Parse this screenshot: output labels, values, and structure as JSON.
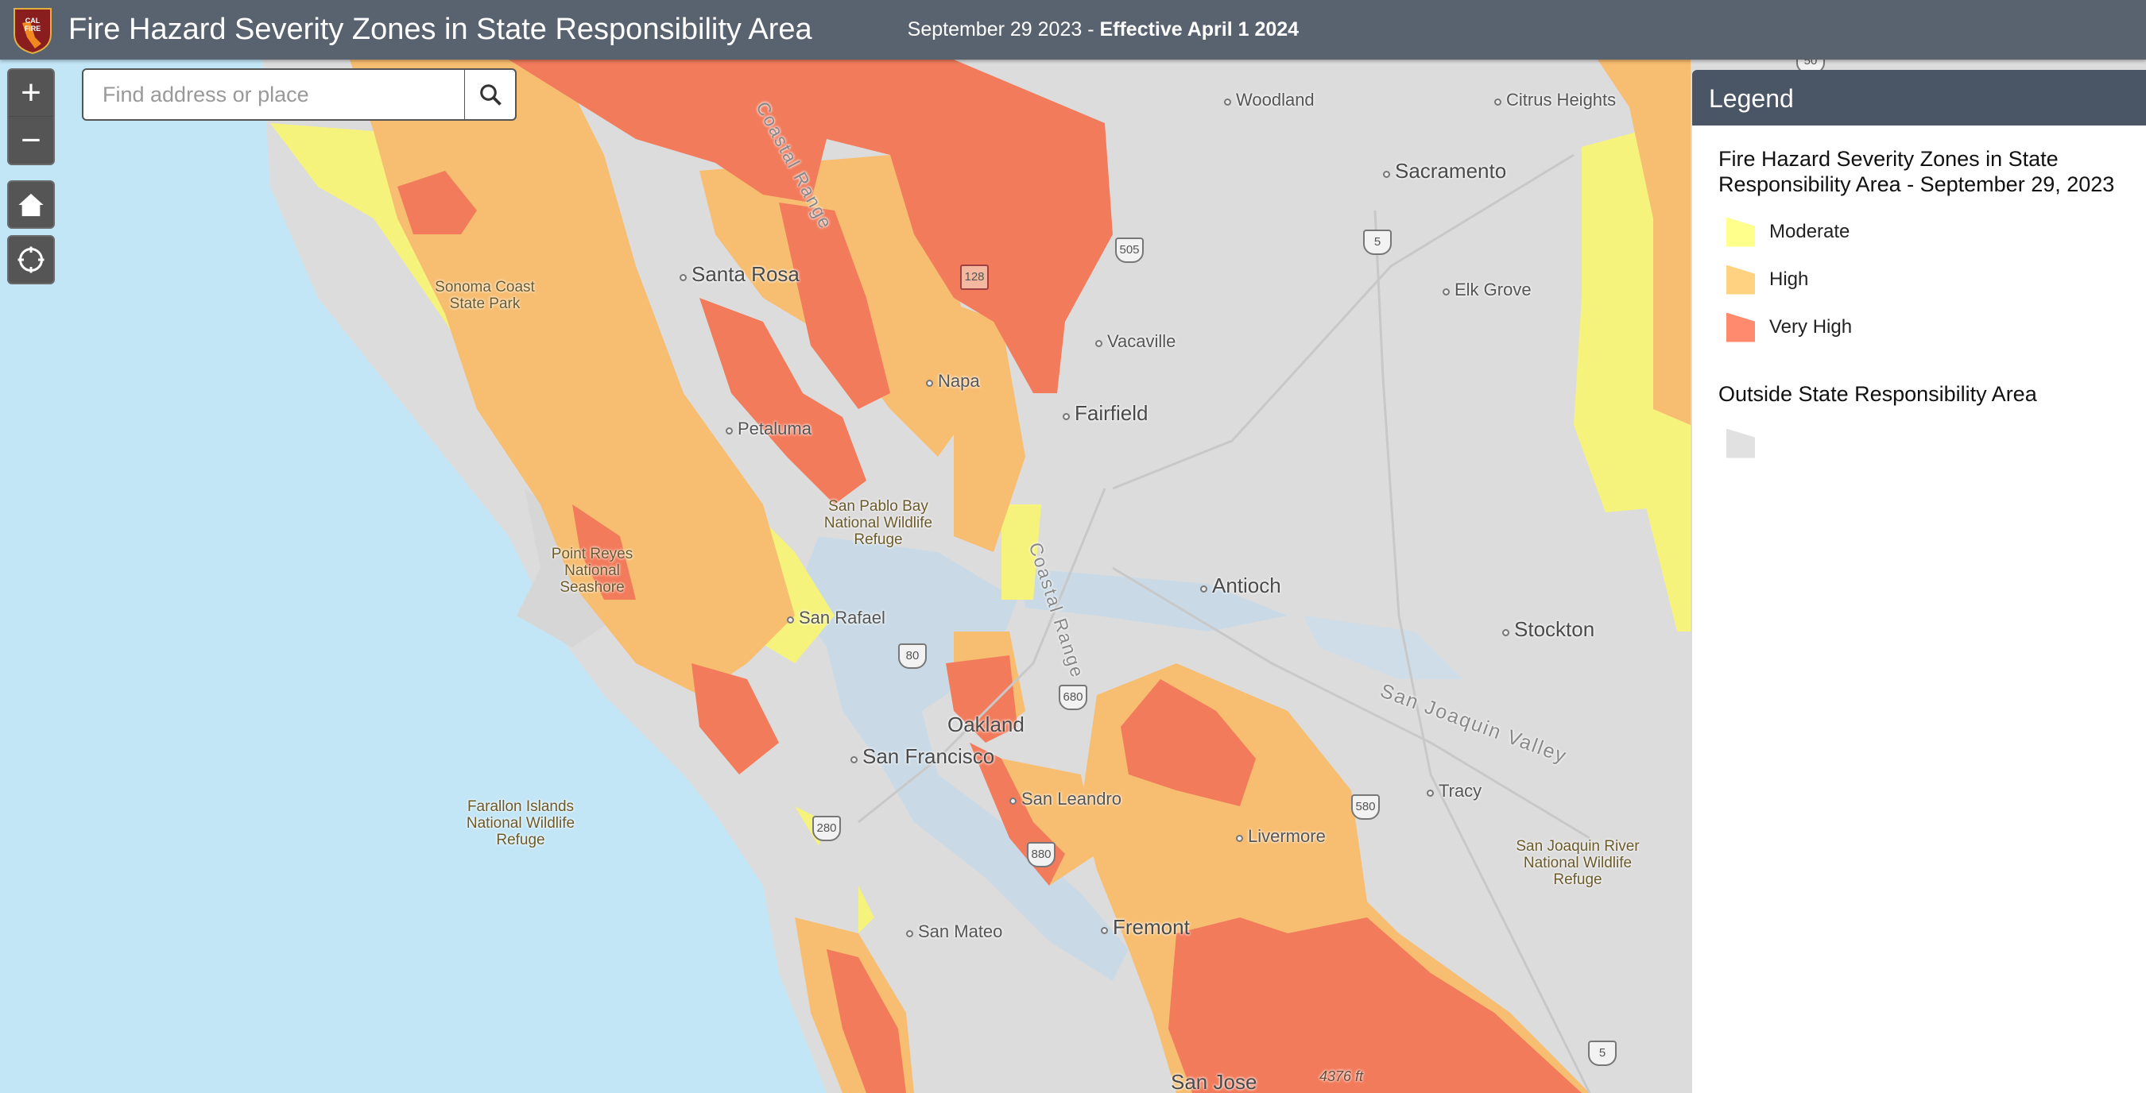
{
  "header": {
    "title": "Fire Hazard Severity Zones in State Responsibility Area",
    "date": "September 29 2023 - ",
    "effective": "Effective April 1 2024",
    "logo_text": "CAL FIRE"
  },
  "search": {
    "placeholder": "Find address or place"
  },
  "controls": {
    "zoom_in": "+",
    "zoom_out": "−"
  },
  "legend": {
    "heading": "Legend",
    "layer_title": "Fire Hazard Severity Zones in State Responsibility Area - September 29, 2023",
    "items": [
      {
        "label": "Moderate",
        "color": "#ffff8c"
      },
      {
        "label": "High",
        "color": "#ffd282"
      },
      {
        "label": "Very High",
        "color": "#ff8a6e"
      }
    ],
    "outside_title": "Outside State Responsibility Area",
    "outside_color": "#e1e1e1"
  },
  "map": {
    "places": [
      "Woodland",
      "Citrus Heights",
      "Sacramento",
      "Elk Grove",
      "Vacaville",
      "Fairfield",
      "Santa Rosa",
      "Napa",
      "Petaluma",
      "Antioch",
      "Stockton",
      "San Rafael",
      "Oakland",
      "San Francisco",
      "San Leandro",
      "Tracy",
      "Livermore",
      "San Mateo",
      "Fremont",
      "San Jose"
    ],
    "parks": [
      "Sonoma Coast State Park",
      "San Pablo Bay National Wildlife Refuge",
      "Point Reyes National Seashore",
      "Farallon Islands National Wildlife Refuge",
      "San Joaquin River National Wildlife Refuge"
    ],
    "regions": [
      "Coastal Range",
      "Coastal Range",
      "San Joaquin Valley"
    ],
    "elevation": "4376 ft",
    "highways": [
      "50",
      "128",
      "505",
      "5",
      "80",
      "680",
      "580",
      "280",
      "880",
      "5"
    ]
  }
}
